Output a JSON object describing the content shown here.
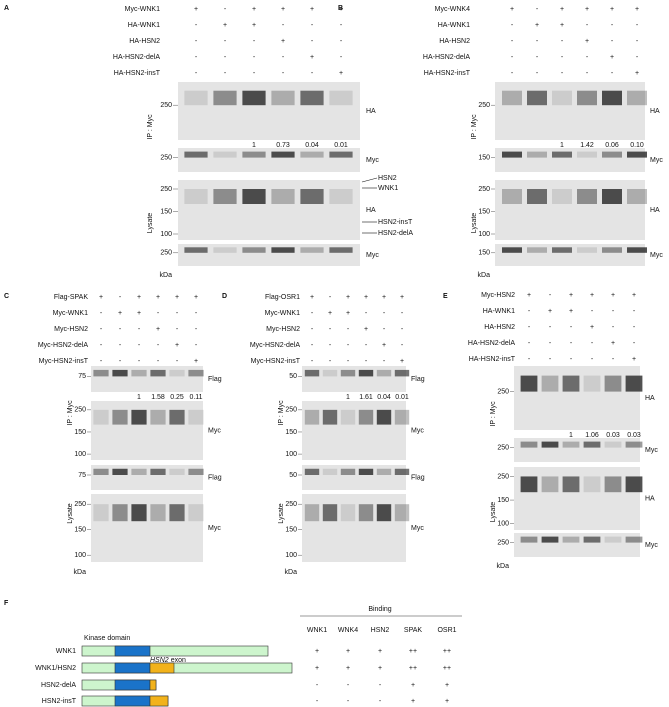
{
  "panels": [
    {
      "letter": "A",
      "conditions": [
        {
          "label": "Myc-WNK1",
          "signs": [
            "+",
            "-",
            "+",
            "+",
            "+",
            "+"
          ]
        },
        {
          "label": "HA-WNK1",
          "signs": [
            "-",
            "+",
            "+",
            "-",
            "-",
            "-"
          ]
        },
        {
          "label": "HA-HSN2",
          "signs": [
            "-",
            "-",
            "-",
            "+",
            "-",
            "-"
          ]
        },
        {
          "label": "HA-HSN2-delA",
          "signs": [
            "-",
            "-",
            "-",
            "-",
            "+",
            "-"
          ]
        },
        {
          "label": "HA-HSN2-insT",
          "signs": [
            "-",
            "-",
            "-",
            "-",
            "-",
            "+"
          ]
        }
      ],
      "ip": {
        "label": "IP : Myc",
        "blots": [
          {
            "label": "HA",
            "markers": [
              250
            ],
            "quant": [
              "1",
              "0.73",
              "0.04",
              "0.01"
            ]
          },
          {
            "label": "Myc",
            "markers": [
              250
            ]
          }
        ]
      },
      "lysate": {
        "label": "Lysate",
        "blots": [
          {
            "label": "HA",
            "markers": [
              250,
              150,
              100
            ],
            "annotations": [
              "HSN2",
              "WNK1",
              "HSN2-insT",
              "HSN2-delA"
            ]
          },
          {
            "label": "Myc",
            "markers": [
              250
            ]
          }
        ]
      },
      "unit": "kDa"
    },
    {
      "letter": "B",
      "conditions": [
        {
          "label": "Myc-WNK4",
          "signs": [
            "+",
            "-",
            "+",
            "+",
            "+",
            "+"
          ]
        },
        {
          "label": "HA-WNK1",
          "signs": [
            "-",
            "+",
            "+",
            "-",
            "-",
            "-"
          ]
        },
        {
          "label": "HA-HSN2",
          "signs": [
            "-",
            "-",
            "-",
            "+",
            "-",
            "-"
          ]
        },
        {
          "label": "HA-HSN2-delA",
          "signs": [
            "-",
            "-",
            "-",
            "-",
            "+",
            "-"
          ]
        },
        {
          "label": "HA-HSN2-insT",
          "signs": [
            "-",
            "-",
            "-",
            "-",
            "-",
            "+"
          ]
        }
      ],
      "ip": {
        "label": "IP : Myc",
        "blots": [
          {
            "label": "HA",
            "markers": [
              250
            ],
            "quant": [
              "1",
              "1.42",
              "0.06",
              "0.10"
            ]
          },
          {
            "label": "Myc",
            "markers": [
              150
            ]
          }
        ]
      },
      "lysate": {
        "label": "Lysate",
        "blots": [
          {
            "label": "HA",
            "markers": [
              250,
              150,
              100
            ]
          },
          {
            "label": "Myc",
            "markers": [
              150
            ]
          }
        ]
      },
      "unit": "kDa"
    },
    {
      "letter": "C",
      "conditions": [
        {
          "label": "Flag-SPAK",
          "signs": [
            "+",
            "-",
            "+",
            "+",
            "+",
            "+"
          ]
        },
        {
          "label": "Myc-WNK1",
          "signs": [
            "-",
            "+",
            "+",
            "-",
            "-",
            "-"
          ]
        },
        {
          "label": "Myc-HSN2",
          "signs": [
            "-",
            "-",
            "-",
            "+",
            "-",
            "-"
          ]
        },
        {
          "label": "Myc-HSN2-delA",
          "signs": [
            "-",
            "-",
            "-",
            "-",
            "+",
            "-"
          ]
        },
        {
          "label": "Myc-HSN2-insT",
          "signs": [
            "-",
            "-",
            "-",
            "-",
            "-",
            "+"
          ]
        }
      ],
      "ip": {
        "label": "IP : Myc",
        "blots": [
          {
            "label": "Flag",
            "markers": [
              75
            ],
            "quant": [
              "1",
              "1.58",
              "0.25",
              "0.11"
            ]
          },
          {
            "label": "Myc",
            "markers": [
              250,
              150,
              100
            ]
          }
        ]
      },
      "lysate": {
        "label": "Lysate",
        "blots": [
          {
            "label": "Flag",
            "markers": [
              75
            ]
          },
          {
            "label": "Myc",
            "markers": [
              250,
              150,
              100
            ]
          }
        ]
      },
      "unit": "kDa"
    },
    {
      "letter": "D",
      "conditions": [
        {
          "label": "Flag-OSR1",
          "signs": [
            "+",
            "-",
            "+",
            "+",
            "+",
            "+"
          ]
        },
        {
          "label": "Myc-WNK1",
          "signs": [
            "-",
            "+",
            "+",
            "-",
            "-",
            "-"
          ]
        },
        {
          "label": "Myc-HSN2",
          "signs": [
            "-",
            "-",
            "-",
            "+",
            "-",
            "-"
          ]
        },
        {
          "label": "Myc-HSN2-delA",
          "signs": [
            "-",
            "-",
            "-",
            "-",
            "+",
            "-"
          ]
        },
        {
          "label": "Myc-HSN2-insT",
          "signs": [
            "-",
            "-",
            "-",
            "-",
            "-",
            "+"
          ]
        }
      ],
      "ip": {
        "label": "IP : Myc",
        "blots": [
          {
            "label": "Flag",
            "markers": [
              50
            ],
            "quant": [
              "1",
              "1.61",
              "0.04",
              "0.01"
            ]
          },
          {
            "label": "Myc",
            "markers": [
              250,
              150,
              100
            ]
          }
        ]
      },
      "lysate": {
        "label": "Lysate",
        "blots": [
          {
            "label": "Flag",
            "markers": [
              50
            ]
          },
          {
            "label": "Myc",
            "markers": [
              250,
              150,
              100
            ]
          }
        ]
      },
      "unit": "kDa"
    },
    {
      "letter": "E",
      "conditions": [
        {
          "label": "Myc-HSN2",
          "signs": [
            "+",
            "-",
            "+",
            "+",
            "+",
            "+"
          ]
        },
        {
          "label": "HA-WNK1",
          "signs": [
            "-",
            "+",
            "+",
            "-",
            "-",
            "-"
          ]
        },
        {
          "label": "HA-HSN2",
          "signs": [
            "-",
            "-",
            "-",
            "+",
            "-",
            "-"
          ]
        },
        {
          "label": "HA-HSN2-delA",
          "signs": [
            "-",
            "-",
            "-",
            "-",
            "+",
            "-"
          ]
        },
        {
          "label": "HA-HSN2-insT",
          "signs": [
            "-",
            "-",
            "-",
            "-",
            "-",
            "+"
          ]
        }
      ],
      "ip": {
        "label": "IP : Myc",
        "blots": [
          {
            "label": "HA",
            "markers": [
              250
            ],
            "quant": [
              "1",
              "1.06",
              "0.03",
              "0.03"
            ]
          },
          {
            "label": "Myc",
            "markers": [
              250
            ]
          }
        ]
      },
      "lysate": {
        "label": "Lysate",
        "blots": [
          {
            "label": "HA",
            "markers": [
              250,
              150,
              100
            ]
          },
          {
            "label": "Myc",
            "markers": [
              250
            ]
          }
        ]
      },
      "unit": "kDa"
    }
  ],
  "domains": {
    "letter": "F",
    "kinase": "Kinase domain",
    "exon_gene": "HSN2",
    "exon_word": "exon",
    "binding": {
      "title": "Binding",
      "columns": [
        "WNK1",
        "WNK4",
        "HSN2",
        "SPAK",
        "OSR1"
      ],
      "rows": [
        {
          "label": "WNK1",
          "values": [
            "+",
            "+",
            "+",
            "++",
            "++"
          ]
        },
        {
          "label": "WNK1/HSN2",
          "values": [
            "+",
            "+",
            "+",
            "++",
            "++"
          ]
        },
        {
          "label": "HSN2-delA",
          "values": [
            "-",
            "-",
            "-",
            "+",
            "+"
          ]
        },
        {
          "label": "HSN2-insT",
          "values": [
            "-",
            "-",
            "-",
            "+",
            "+"
          ]
        }
      ]
    }
  }
}
